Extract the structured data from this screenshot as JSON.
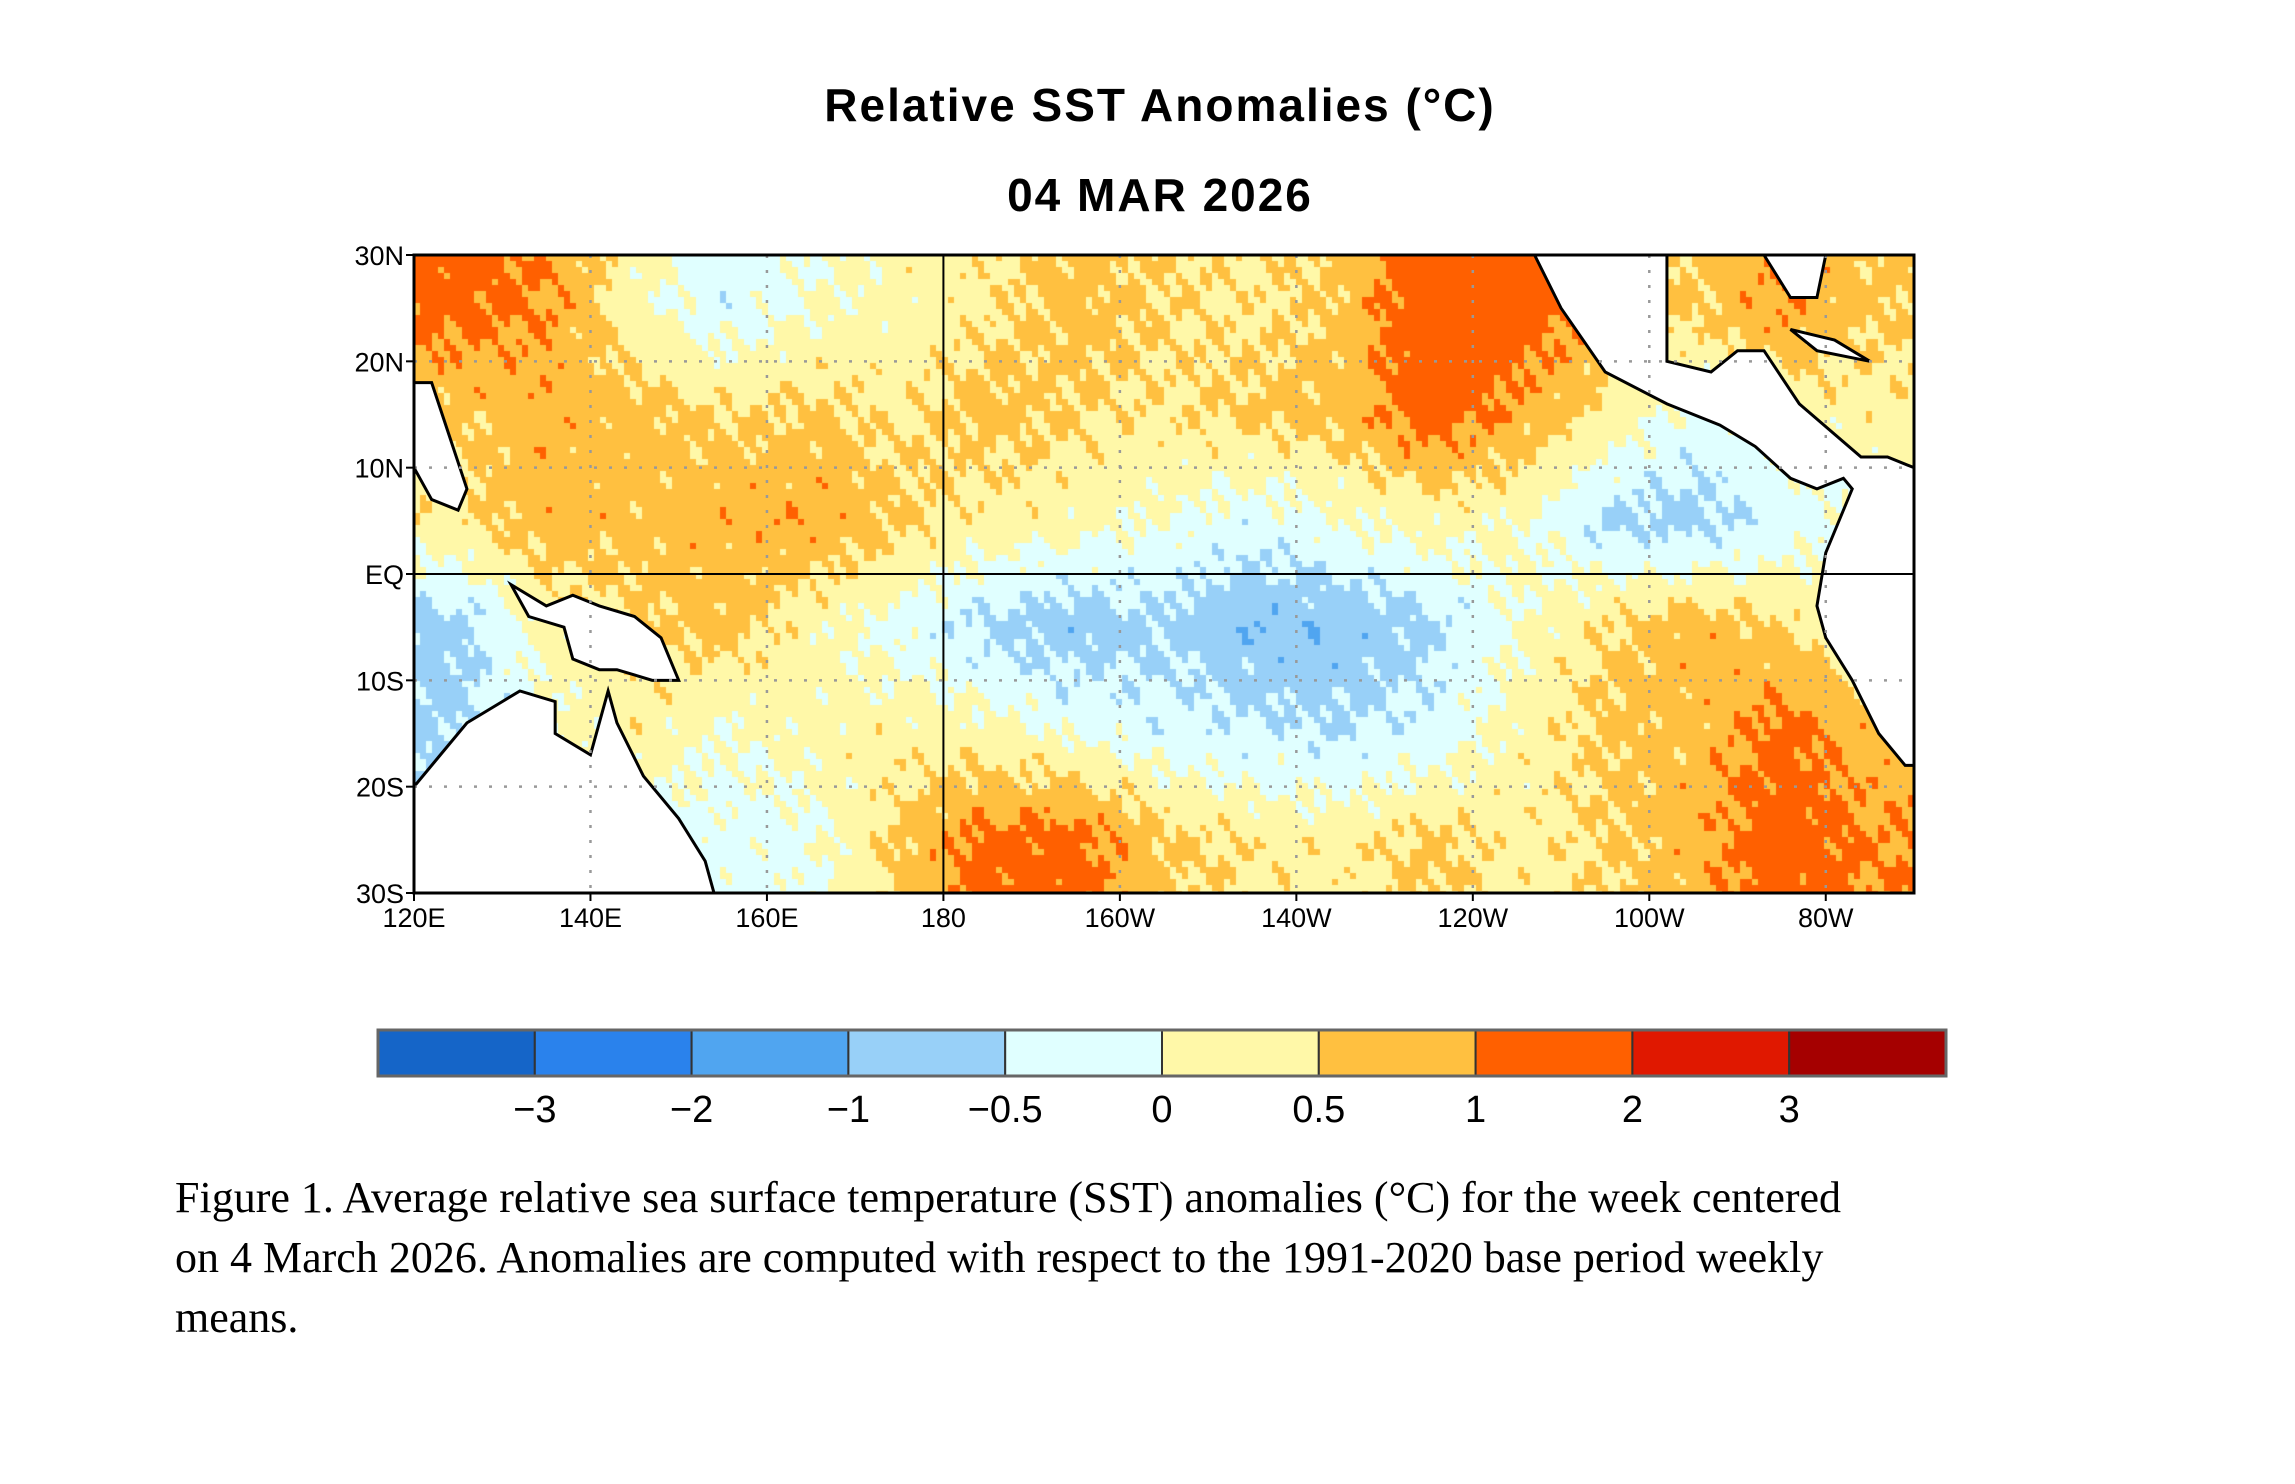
{
  "chart_data": {
    "type": "heatmap",
    "title": "Relative SST Anomalies (°C)",
    "subtitle": "04 MAR 2026",
    "x_ticks": [
      "120E",
      "140E",
      "160E",
      "180",
      "160W",
      "140W",
      "120W",
      "100W",
      "80W"
    ],
    "y_ticks": [
      "30N",
      "20N",
      "10N",
      "EQ",
      "10S",
      "20S",
      "30S"
    ],
    "xlim_deg_east": [
      120,
      290
    ],
    "ylim_deg": [
      -30,
      30
    ],
    "grid": "dotted at 20° longitude and 10° latitude; solid at 180 and EQ",
    "grid_lon_centers_deg_east": [
      125,
      135,
      145,
      155,
      165,
      175,
      185,
      195,
      205,
      215,
      225,
      235,
      245,
      255,
      265,
      275,
      285
    ],
    "grid_lat_centers": [
      25,
      15,
      5,
      -5,
      -15,
      -25
    ],
    "values_degC": [
      [
        1.2,
        1.0,
        0.2,
        -0.3,
        0.0,
        0.2,
        0.4,
        0.7,
        0.5,
        0.4,
        0.6,
        1.5,
        1.3,
        null,
        null,
        1.0,
        0.6
      ],
      [
        0.6,
        0.8,
        0.7,
        0.5,
        0.6,
        0.4,
        0.7,
        0.5,
        0.4,
        0.6,
        0.7,
        1.3,
        0.9,
        0.4,
        -0.2,
        null,
        0.3
      ],
      [
        0.4,
        0.8,
        0.7,
        0.8,
        0.9,
        0.6,
        0.3,
        0.2,
        0.0,
        -0.3,
        0.0,
        0.2,
        0.1,
        -0.6,
        -0.7,
        -0.3,
        null
      ],
      [
        -0.7,
        null,
        0.5,
        0.7,
        0.2,
        -0.2,
        -0.6,
        -0.8,
        -0.6,
        -0.9,
        -0.9,
        -0.6,
        0.0,
        0.5,
        0.8,
        0.5,
        null
      ],
      [
        -0.6,
        null,
        0.3,
        0.0,
        0.2,
        0.3,
        0.2,
        -0.1,
        -0.3,
        -0.4,
        -0.5,
        -0.3,
        0.2,
        0.6,
        0.7,
        1.2,
        null
      ],
      [
        null,
        null,
        0.0,
        -0.2,
        -0.1,
        0.6,
        1.2,
        1.2,
        0.6,
        0.4,
        0.3,
        0.6,
        0.3,
        0.5,
        0.8,
        1.3,
        null
      ]
    ],
    "colorbar": {
      "levels": [
        -3,
        -2,
        -1,
        -0.5,
        0,
        0.5,
        1,
        2,
        3
      ],
      "labels": [
        "−3",
        "−2",
        "−1",
        "−0.5",
        "0",
        "0.5",
        "1",
        "2",
        "3"
      ],
      "colors": [
        "#1565c8",
        "#2a82ec",
        "#50a5f0",
        "#98d0f8",
        "#e0ffff",
        "#fff8a8",
        "#ffc040",
        "#ff6000",
        "#e01800",
        "#a50000"
      ]
    },
    "land_color": "#ffffff"
  },
  "caption": {
    "lines": [
      "Figure 1. Average relative sea surface temperature (SST) anomalies (°C) for the week centered",
      "on 4 March 2026.  Anomalies are computed with respect to the 1991-2020 base period weekly",
      "means."
    ]
  }
}
